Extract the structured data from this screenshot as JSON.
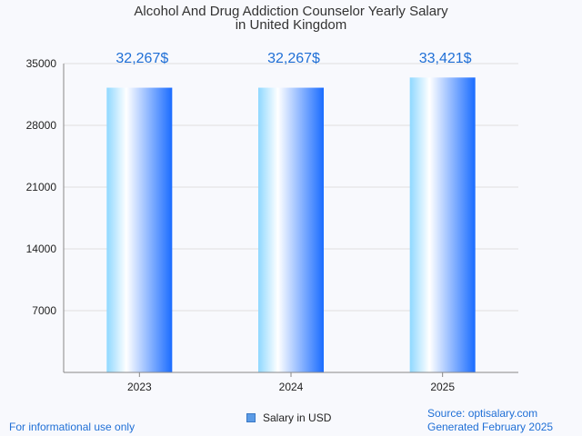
{
  "chart_data": {
    "type": "bar",
    "title_line1": "Alcohol And Drug Addiction Counselor Yearly Salary",
    "title_line2": "in United Kingdom",
    "categories": [
      "2023",
      "2024",
      "2025"
    ],
    "values": [
      32267,
      32267,
      33421
    ],
    "value_labels": [
      "32,267$",
      "32,267$",
      "33,421$"
    ],
    "y_ticks": [
      7000,
      14000,
      21000,
      28000,
      35000
    ],
    "ylim": [
      0,
      35000
    ],
    "legend": "Salary in USD",
    "legend_position": "bottom-center",
    "grid": true
  },
  "footer": {
    "left": "For informational use only",
    "source": "Source: optisalary.com",
    "generated": "Generated February 2025"
  },
  "colors": {
    "label": "#1f6fd6",
    "bar_light": "#8fd8ff",
    "bar_white": "#ffffff",
    "bar_dark": "#1a6cff",
    "grid": "#e0e0e0",
    "axis": "#888888"
  }
}
